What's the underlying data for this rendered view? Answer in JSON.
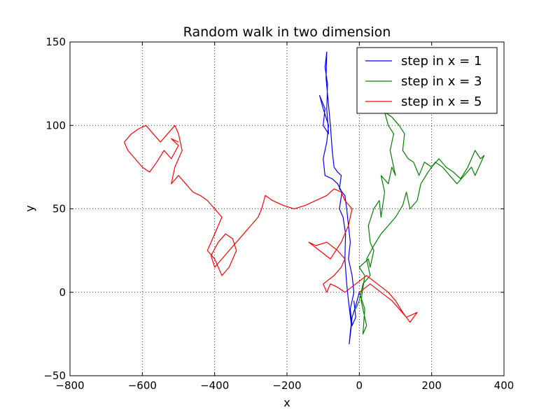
{
  "chart_data": {
    "type": "line",
    "title": "Random walk in two dimension",
    "xlabel": "x",
    "ylabel": "y",
    "xlim": [
      -800,
      400
    ],
    "ylim": [
      -50,
      150
    ],
    "xticks": [
      -800,
      -600,
      -400,
      -200,
      0,
      200,
      400
    ],
    "yticks": [
      -50,
      0,
      50,
      100,
      150
    ],
    "xtick_labels": [
      "−800",
      "−600",
      "−400",
      "−200",
      "0",
      "200",
      "400"
    ],
    "ytick_labels": [
      "−50",
      "0",
      "50",
      "100",
      "150"
    ],
    "grid": true,
    "legend_position": "top-right",
    "series": [
      {
        "name": "step in x = 1",
        "color": "#0000ff",
        "points": [
          [
            0,
            0
          ],
          [
            -10,
            -8
          ],
          [
            -20,
            -15
          ],
          [
            -25,
            -24
          ],
          [
            -28,
            -31
          ],
          [
            -22,
            -20
          ],
          [
            -30,
            -5
          ],
          [
            -35,
            5
          ],
          [
            -40,
            20
          ],
          [
            -38,
            35
          ],
          [
            -45,
            45
          ],
          [
            -55,
            50
          ],
          [
            -48,
            60
          ],
          [
            -60,
            65
          ],
          [
            -75,
            68
          ],
          [
            -95,
            70
          ],
          [
            -100,
            80
          ],
          [
            -90,
            90
          ],
          [
            -85,
            100
          ],
          [
            -100,
            110
          ],
          [
            -110,
            118
          ],
          [
            -95,
            110
          ],
          [
            -100,
            100
          ],
          [
            -85,
            95
          ],
          [
            -90,
            110
          ],
          [
            -88,
            125
          ],
          [
            -95,
            135
          ],
          [
            -90,
            144
          ],
          [
            -92,
            128
          ],
          [
            -85,
            112
          ],
          [
            -80,
            100
          ],
          [
            -75,
            85
          ],
          [
            -70,
            75
          ],
          [
            -60,
            72
          ],
          [
            -50,
            70
          ],
          [
            -55,
            62
          ],
          [
            -40,
            58
          ],
          [
            -35,
            50
          ],
          [
            -30,
            40
          ],
          [
            -25,
            30
          ],
          [
            -30,
            20
          ],
          [
            -20,
            10
          ],
          [
            -15,
            0
          ],
          [
            -25,
            -10
          ],
          [
            -20,
            -20
          ],
          [
            -10,
            -15
          ],
          [
            -15,
            -5
          ]
        ]
      },
      {
        "name": "step in x = 3",
        "color": "#008000",
        "points": [
          [
            0,
            0
          ],
          [
            15,
            -10
          ],
          [
            10,
            -25
          ],
          [
            20,
            -20
          ],
          [
            5,
            -5
          ],
          [
            15,
            10
          ],
          [
            0,
            15
          ],
          [
            25,
            20
          ],
          [
            30,
            15
          ],
          [
            40,
            25
          ],
          [
            30,
            30
          ],
          [
            25,
            40
          ],
          [
            40,
            50
          ],
          [
            55,
            55
          ],
          [
            60,
            45
          ],
          [
            70,
            60
          ],
          [
            60,
            70
          ],
          [
            80,
            65
          ],
          [
            90,
            75
          ],
          [
            100,
            70
          ],
          [
            85,
            85
          ],
          [
            95,
            95
          ],
          [
            80,
            100
          ],
          [
            70,
            108
          ],
          [
            90,
            105
          ],
          [
            110,
            100
          ],
          [
            125,
            95
          ],
          [
            120,
            85
          ],
          [
            135,
            80
          ],
          [
            150,
            78
          ],
          [
            165,
            70
          ],
          [
            180,
            78
          ],
          [
            200,
            75
          ],
          [
            220,
            80
          ],
          [
            240,
            75
          ],
          [
            260,
            72
          ],
          [
            280,
            68
          ],
          [
            300,
            75
          ],
          [
            320,
            85
          ],
          [
            335,
            80
          ],
          [
            345,
            82
          ],
          [
            320,
            70
          ],
          [
            310,
            75
          ],
          [
            290,
            70
          ],
          [
            270,
            65
          ],
          [
            250,
            70
          ],
          [
            230,
            75
          ],
          [
            210,
            78
          ],
          [
            190,
            72
          ],
          [
            170,
            65
          ],
          [
            160,
            55
          ],
          [
            140,
            50
          ],
          [
            130,
            60
          ],
          [
            120,
            52
          ],
          [
            100,
            45
          ],
          [
            80,
            40
          ],
          [
            60,
            35
          ],
          [
            40,
            28
          ],
          [
            20,
            20
          ],
          [
            30,
            10
          ],
          [
            10,
            5
          ],
          [
            0,
            -5
          ],
          [
            -10,
            -10
          ]
        ]
      },
      {
        "name": "step in x = 5",
        "color": "#ff0000",
        "points": [
          [
            0,
            0
          ],
          [
            30,
            5
          ],
          [
            60,
            0
          ],
          [
            90,
            -5
          ],
          [
            110,
            -10
          ],
          [
            130,
            -15
          ],
          [
            160,
            -12
          ],
          [
            140,
            -18
          ],
          [
            120,
            -12
          ],
          [
            100,
            -5
          ],
          [
            80,
            0
          ],
          [
            50,
            5
          ],
          [
            20,
            10
          ],
          [
            -10,
            5
          ],
          [
            -40,
            0
          ],
          [
            -60,
            3
          ],
          [
            -80,
            5
          ],
          [
            -90,
            0
          ],
          [
            -100,
            5
          ],
          [
            -70,
            10
          ],
          [
            -50,
            15
          ],
          [
            -40,
            20
          ],
          [
            -60,
            25
          ],
          [
            -90,
            30
          ],
          [
            -120,
            28
          ],
          [
            -140,
            30
          ],
          [
            -110,
            25
          ],
          [
            -80,
            20
          ],
          [
            -50,
            30
          ],
          [
            -30,
            40
          ],
          [
            -20,
            50
          ],
          [
            -40,
            55
          ],
          [
            -50,
            60
          ],
          [
            -70,
            62
          ],
          [
            -90,
            58
          ],
          [
            -120,
            55
          ],
          [
            -150,
            52
          ],
          [
            -180,
            50
          ],
          [
            -210,
            52
          ],
          [
            -240,
            55
          ],
          [
            -260,
            58
          ],
          [
            -270,
            50
          ],
          [
            -280,
            45
          ],
          [
            -300,
            40
          ],
          [
            -320,
            35
          ],
          [
            -340,
            30
          ],
          [
            -360,
            25
          ],
          [
            -380,
            20
          ],
          [
            -400,
            15
          ],
          [
            -410,
            22
          ],
          [
            -390,
            30
          ],
          [
            -370,
            35
          ],
          [
            -350,
            32
          ],
          [
            -340,
            25
          ],
          [
            -360,
            15
          ],
          [
            -380,
            10
          ],
          [
            -400,
            20
          ],
          [
            -420,
            25
          ],
          [
            -400,
            35
          ],
          [
            -380,
            45
          ],
          [
            -400,
            50
          ],
          [
            -420,
            55
          ],
          [
            -440,
            58
          ],
          [
            -460,
            60
          ],
          [
            -480,
            65
          ],
          [
            -500,
            70
          ],
          [
            -520,
            65
          ],
          [
            -510,
            75
          ],
          [
            -490,
            85
          ],
          [
            -500,
            95
          ],
          [
            -510,
            100
          ],
          [
            -530,
            95
          ],
          [
            -550,
            90
          ],
          [
            -570,
            95
          ],
          [
            -590,
            100
          ],
          [
            -610,
            98
          ],
          [
            -630,
            95
          ],
          [
            -650,
            90
          ],
          [
            -640,
            85
          ],
          [
            -620,
            80
          ],
          [
            -600,
            75
          ],
          [
            -580,
            72
          ],
          [
            -560,
            78
          ],
          [
            -540,
            85
          ],
          [
            -520,
            80
          ],
          [
            -500,
            88
          ],
          [
            -520,
            92
          ],
          [
            -500,
            90
          ]
        ]
      }
    ]
  }
}
